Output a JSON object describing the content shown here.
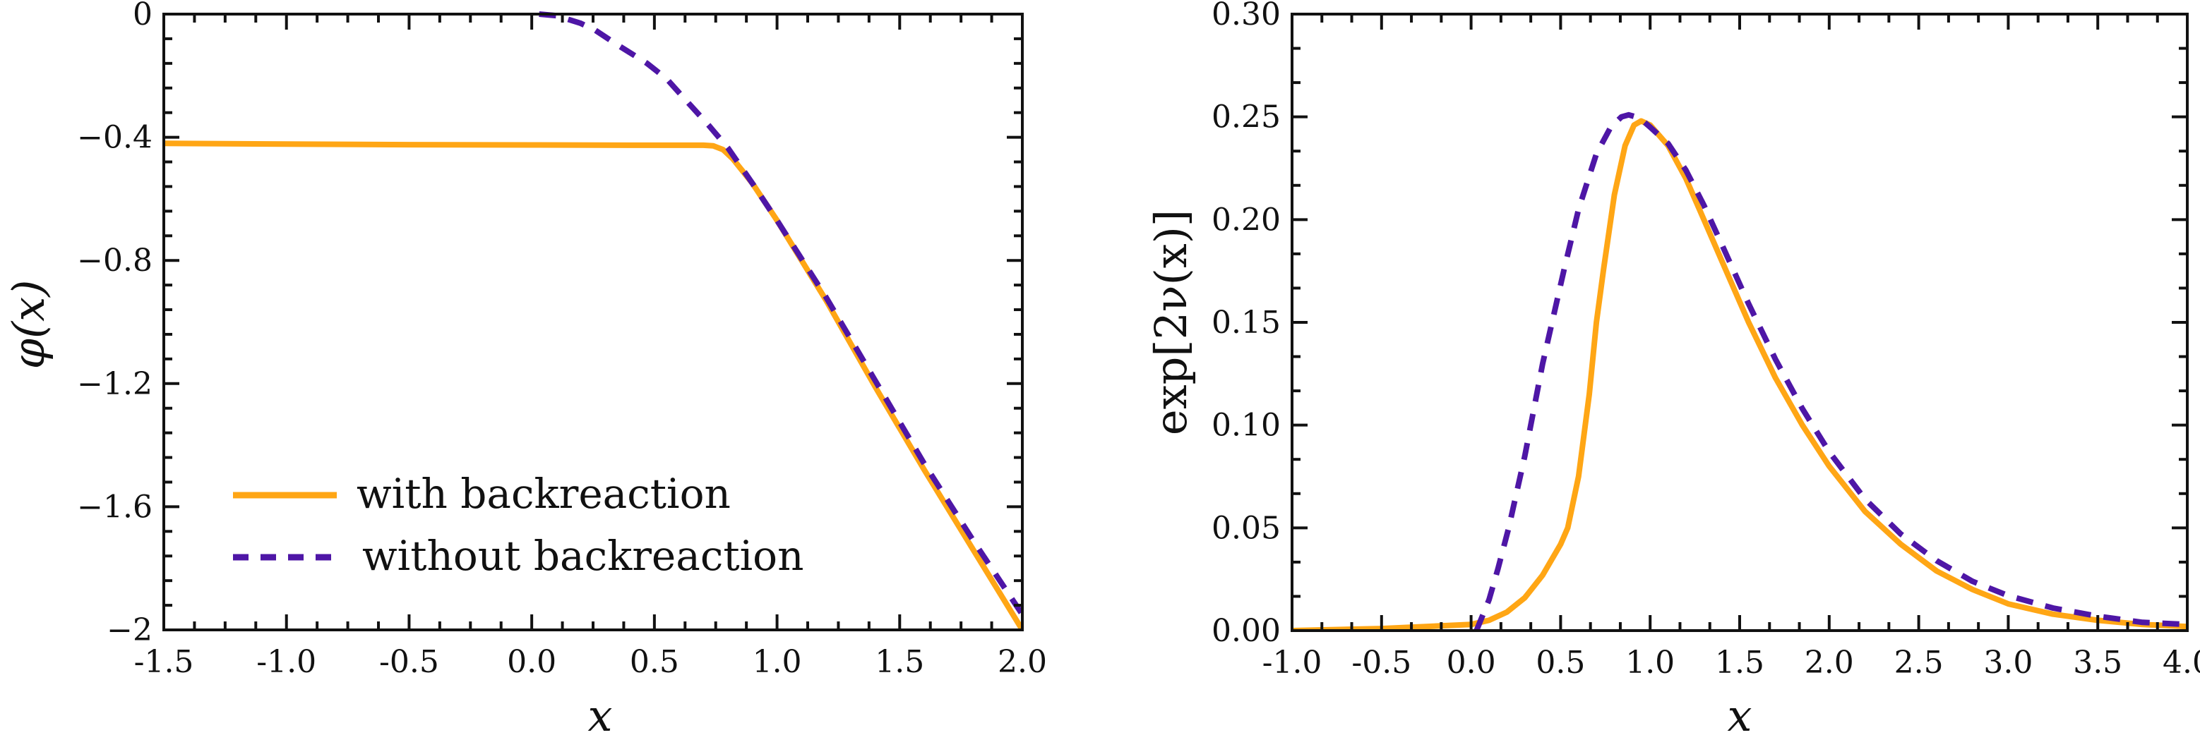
{
  "chart_data": [
    {
      "type": "line",
      "title": "",
      "xlabel": "x",
      "ylabel": "φ(x)",
      "xlim": [
        -1.5,
        2.0
      ],
      "ylim": [
        -2,
        0
      ],
      "grid": false,
      "xticks": [
        -1.5,
        -1.0,
        -0.5,
        0.0,
        0.5,
        1.0,
        1.5,
        2.0
      ],
      "xtick_labels": [
        "-1.5",
        "-1.0",
        "-0.5",
        "0.0",
        "0.5",
        "1.0",
        "1.5",
        "2.0"
      ],
      "yticks": [
        0,
        -0.4,
        -0.8,
        -1.2,
        -1.6,
        -2
      ],
      "ytick_labels": [
        "0",
        "−0.4",
        "−0.8",
        "−1.2",
        "−1.6",
        "−2"
      ],
      "x_minor_step": 0.125,
      "y_minor_step": 0.08,
      "legend_placement": "lower-left",
      "series": [
        {
          "name": "with backreaction",
          "style": "solid",
          "color": "#FFA615",
          "x": [
            -1.5,
            -1.0,
            -0.5,
            0.0,
            0.5,
            0.7,
            0.74,
            0.78,
            0.82,
            0.86,
            0.9,
            1.0,
            1.2,
            1.4,
            1.6,
            1.8,
            2.0
          ],
          "y": [
            -0.42,
            -0.422,
            -0.424,
            -0.425,
            -0.426,
            -0.426,
            -0.428,
            -0.44,
            -0.47,
            -0.51,
            -0.55,
            -0.67,
            -0.93,
            -1.21,
            -1.48,
            -1.74,
            -2.0
          ]
        },
        {
          "name": "without backreaction",
          "style": "dashed",
          "color": "#4E16A6",
          "x": [
            0.03,
            0.1,
            0.2,
            0.26,
            0.35,
            0.47,
            0.55,
            0.64,
            0.72,
            0.8,
            0.9,
            1.0,
            1.2,
            1.4,
            1.6,
            1.8,
            2.0
          ],
          "y": [
            0.0,
            -0.005,
            -0.03,
            -0.053,
            -0.1,
            -0.16,
            -0.21,
            -0.29,
            -0.36,
            -0.435,
            -0.55,
            -0.67,
            -0.92,
            -1.19,
            -1.46,
            -1.71,
            -1.95
          ]
        }
      ]
    },
    {
      "type": "line",
      "title": "",
      "xlabel": "x",
      "ylabel": "exp[2ν(x)]",
      "xlim": [
        -1.0,
        4.0
      ],
      "ylim": [
        0.0,
        0.3
      ],
      "grid": false,
      "xticks": [
        -1.0,
        -0.5,
        0.0,
        0.5,
        1.0,
        1.5,
        2.0,
        2.5,
        3.0,
        3.5,
        4.0
      ],
      "xtick_labels": [
        "-1.0",
        "-0.5",
        "0.0",
        "0.5",
        "1.0",
        "1.5",
        "2.0",
        "2.5",
        "3.0",
        "3.5",
        "4.0"
      ],
      "yticks": [
        0.0,
        0.05,
        0.1,
        0.15,
        0.2,
        0.25,
        0.3
      ],
      "ytick_labels": [
        "0.00",
        "0.05",
        "0.10",
        "0.15",
        "0.20",
        "0.25",
        "0.30"
      ],
      "x_minor_step": 0.16667,
      "y_minor_step": 0.016667,
      "series": [
        {
          "name": "with backreaction",
          "style": "solid",
          "color": "#FFA615",
          "x": [
            -1.0,
            -0.5,
            0.0,
            0.1,
            0.2,
            0.3,
            0.4,
            0.5,
            0.54,
            0.6,
            0.66,
            0.7,
            0.74,
            0.8,
            0.86,
            0.91,
            0.95,
            1.0,
            1.1,
            1.2,
            1.3,
            1.4,
            1.55,
            1.7,
            1.85,
            2.0,
            2.2,
            2.4,
            2.6,
            2.8,
            3.0,
            3.25,
            3.5,
            3.75,
            4.0
          ],
          "y": [
            0.0,
            0.001,
            0.003,
            0.005,
            0.009,
            0.016,
            0.027,
            0.042,
            0.05,
            0.075,
            0.115,
            0.15,
            0.176,
            0.212,
            0.236,
            0.246,
            0.248,
            0.246,
            0.236,
            0.22,
            0.2,
            0.18,
            0.15,
            0.123,
            0.1,
            0.08,
            0.058,
            0.042,
            0.029,
            0.02,
            0.013,
            0.008,
            0.005,
            0.003,
            0.002
          ]
        },
        {
          "name": "without backreaction",
          "style": "dashed",
          "color": "#4E16A6",
          "x": [
            0.03,
            0.1,
            0.15,
            0.21,
            0.3,
            0.4,
            0.52,
            0.6,
            0.7,
            0.78,
            0.84,
            0.88,
            0.92,
            0.96,
            1.0,
            1.1,
            1.2,
            1.3,
            1.4,
            1.55,
            1.7,
            1.85,
            2.0,
            2.2,
            2.4,
            2.6,
            2.8,
            3.0,
            3.25,
            3.5,
            3.75,
            4.0
          ],
          "y": [
            0.0,
            0.015,
            0.03,
            0.05,
            0.085,
            0.13,
            0.176,
            0.205,
            0.232,
            0.245,
            0.25,
            0.251,
            0.25,
            0.248,
            0.245,
            0.237,
            0.224,
            0.207,
            0.188,
            0.159,
            0.132,
            0.108,
            0.087,
            0.064,
            0.047,
            0.034,
            0.024,
            0.017,
            0.011,
            0.007,
            0.004,
            0.003
          ]
        }
      ]
    }
  ],
  "legend": {
    "items": [
      {
        "label": "with backreaction",
        "color": "#FFA615",
        "style": "solid"
      },
      {
        "label": "without backreaction",
        "color": "#4E16A6",
        "style": "dashed"
      }
    ]
  }
}
